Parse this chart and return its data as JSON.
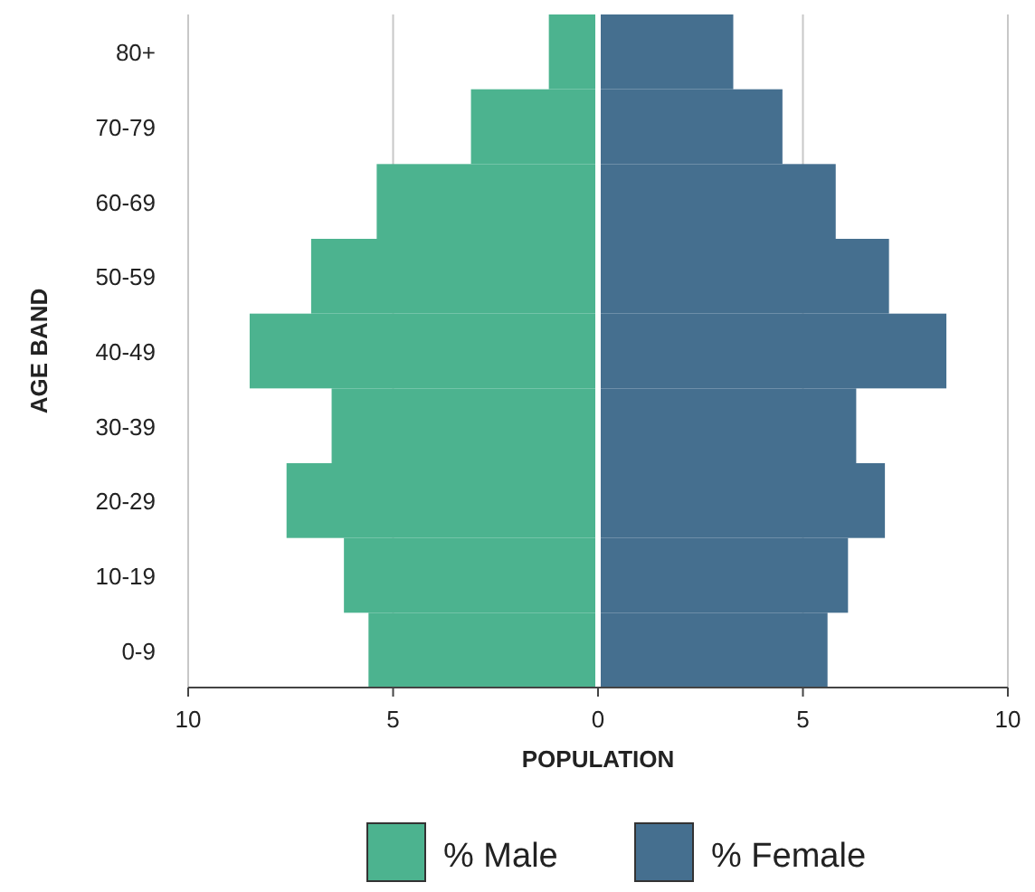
{
  "chart_data": {
    "type": "bar",
    "orientation": "horizontal",
    "stacked": true,
    "xlabel": "POPULATION",
    "ylabel": "AGE BAND",
    "categories": [
      "80+",
      "70-79",
      "60-69",
      "50-59",
      "40-49",
      "30-39",
      "20-29",
      "10-19",
      "0-9"
    ],
    "series": [
      {
        "name": "% Male",
        "color": "#4cb38f",
        "values": [
          -1.2,
          -3.1,
          -5.4,
          -7.0,
          -8.5,
          -6.5,
          -7.6,
          -6.2,
          -5.6
        ]
      },
      {
        "name": "% Female",
        "color": "#456f8f",
        "values": [
          3.3,
          4.5,
          5.8,
          7.1,
          8.5,
          6.3,
          7.0,
          6.1,
          5.6
        ]
      }
    ],
    "xlim": [
      -10,
      10
    ],
    "xticks": [
      {
        "value": -10,
        "label": "10"
      },
      {
        "value": -5,
        "label": "5"
      },
      0,
      5,
      10
    ],
    "grid": "x",
    "legend": "bottom"
  }
}
